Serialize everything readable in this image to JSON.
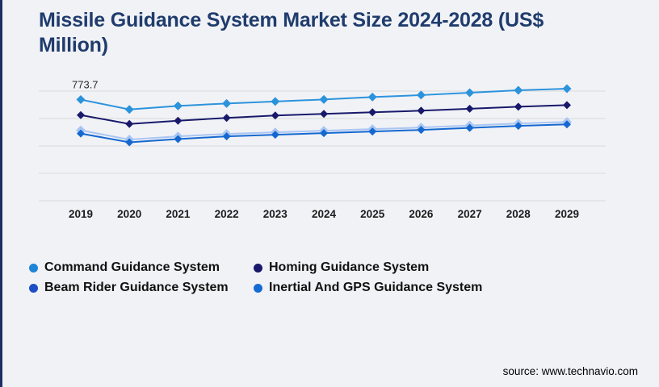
{
  "page": {
    "background_color": "#f1f2f6",
    "accent_bar_color": "#1b2f62",
    "title_color": "#1f3c6d",
    "source": "source: www.technavio.com"
  },
  "chart_data": {
    "type": "line",
    "title": "Missile Guidance System Market Size 2024-2028 (US$ Million)",
    "categories": [
      "2019",
      "2020",
      "2021",
      "2022",
      "2023",
      "2024",
      "2025",
      "2026",
      "2027",
      "2028",
      "2029"
    ],
    "series": [
      {
        "name": "Command Guidance System",
        "color": "#2b93dc",
        "legend_color": "#1e85d6",
        "marker": "diamond",
        "values": [
          773.7,
          737.4,
          750.5,
          759.4,
          766.8,
          774.1,
          783.0,
          790.4,
          799.3,
          808.2,
          814.1
        ]
      },
      {
        "name": "Homing Guidance System",
        "color": "#19196b",
        "legend_color": "#19196b",
        "marker": "diamond",
        "values": [
          716.5,
          683.9,
          695.8,
          706.1,
          715.0,
          720.9,
          726.8,
          732.7,
          740.1,
          747.5,
          753.4
        ]
      },
      {
        "name": "Beam Rider Guidance System",
        "color": "#a9c6f2",
        "legend_color": "#1d4ec6",
        "marker": "diamond",
        "values": [
          660.3,
          626.2,
          638.1,
          647.0,
          652.9,
          658.8,
          664.7,
          670.6,
          678.0,
          685.4,
          691.3
        ]
      },
      {
        "name": "Inertial And GPS Guidance System",
        "color": "#1568d0",
        "legend_color": "#146bd2",
        "marker": "diamond",
        "values": [
          648.4,
          615.9,
          627.7,
          638.1,
          644.0,
          649.9,
          655.8,
          661.7,
          669.1,
          676.5,
          682.4
        ]
      }
    ],
    "annotation": {
      "text": "773.7",
      "series_index": 0,
      "category_index": 0
    },
    "ylim": [
      400,
      820
    ],
    "grid": true,
    "y_axis_labels_visible": false,
    "legend_position": "bottom-left"
  }
}
